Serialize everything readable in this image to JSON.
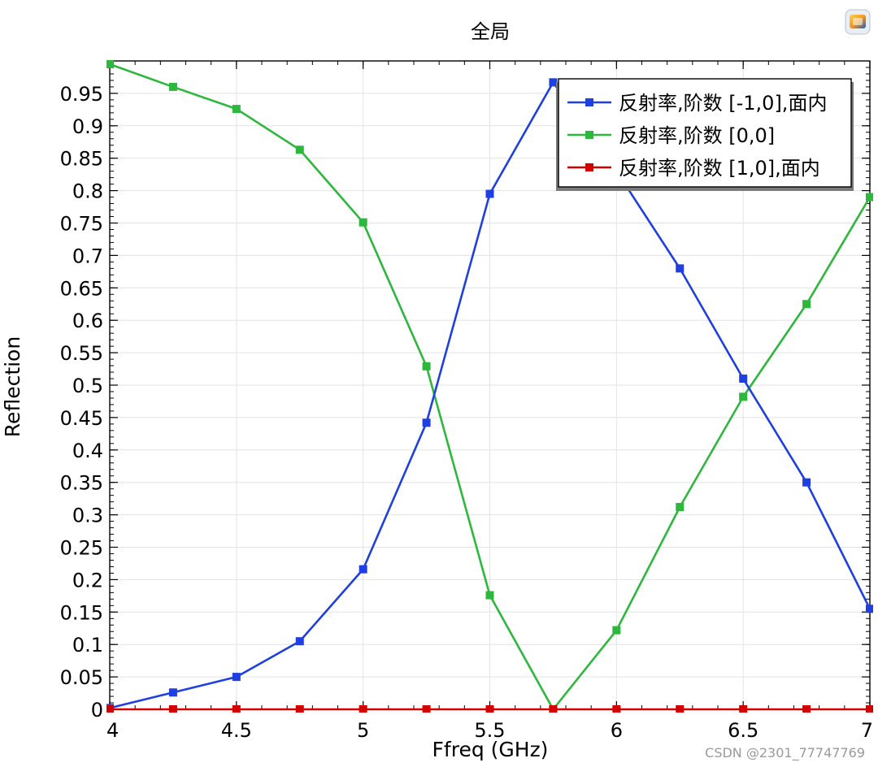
{
  "chart_data": {
    "type": "line",
    "title": "全局",
    "xlabel": "Ffreq (GHz)",
    "ylabel": "Reflection",
    "xlim": [
      4,
      7
    ],
    "ylim": [
      0,
      1.0
    ],
    "x_ticks": [
      4,
      4.5,
      5,
      5.5,
      6,
      6.5,
      7
    ],
    "x_tick_labels": [
      "4",
      "4.5",
      "5",
      "5.5",
      "6",
      "6.5",
      "7"
    ],
    "y_ticks": [
      0,
      0.05,
      0.1,
      0.15,
      0.2,
      0.25,
      0.3,
      0.35,
      0.4,
      0.45,
      0.5,
      0.55,
      0.6,
      0.65,
      0.7,
      0.75,
      0.8,
      0.85,
      0.9,
      0.95
    ],
    "y_tick_labels": [
      "0",
      "0.05",
      "0.1",
      "0.15",
      "0.2",
      "0.25",
      "0.3",
      "0.35",
      "0.4",
      "0.45",
      "0.5",
      "0.55",
      "0.6",
      "0.65",
      "0.7",
      "0.75",
      "0.8",
      "0.85",
      "0.9",
      "0.95"
    ],
    "grid": true,
    "legend_position": "top-right",
    "x": [
      4,
      4.25,
      4.5,
      4.75,
      5,
      5.25,
      5.5,
      5.75,
      6,
      6.25,
      6.5,
      6.75,
      7
    ],
    "series": [
      {
        "name": "反射率,阶数 [-1,0],面内",
        "color": "#1f3fe0",
        "marker": "square",
        "values": [
          0.002,
          0.026,
          0.05,
          0.105,
          0.216,
          0.442,
          0.795,
          0.967,
          0.83,
          0.68,
          0.51,
          0.35,
          0.155
        ]
      },
      {
        "name": "反射率,阶数 [0,0]",
        "color": "#2db83d",
        "marker": "square",
        "values": [
          0.995,
          0.96,
          0.926,
          0.863,
          0.751,
          0.529,
          0.176,
          0.0,
          0.122,
          0.312,
          0.482,
          0.625,
          0.79
        ]
      },
      {
        "name": "反射率,阶数 [1,0],面内",
        "color": "#d40000",
        "marker": "square",
        "values": [
          0,
          0,
          0,
          0,
          0,
          0,
          0,
          0,
          0,
          0,
          0,
          0,
          0
        ]
      }
    ]
  },
  "watermark": "CSDN @2301_77747769",
  "logo_icon": "comsol-logo-icon"
}
